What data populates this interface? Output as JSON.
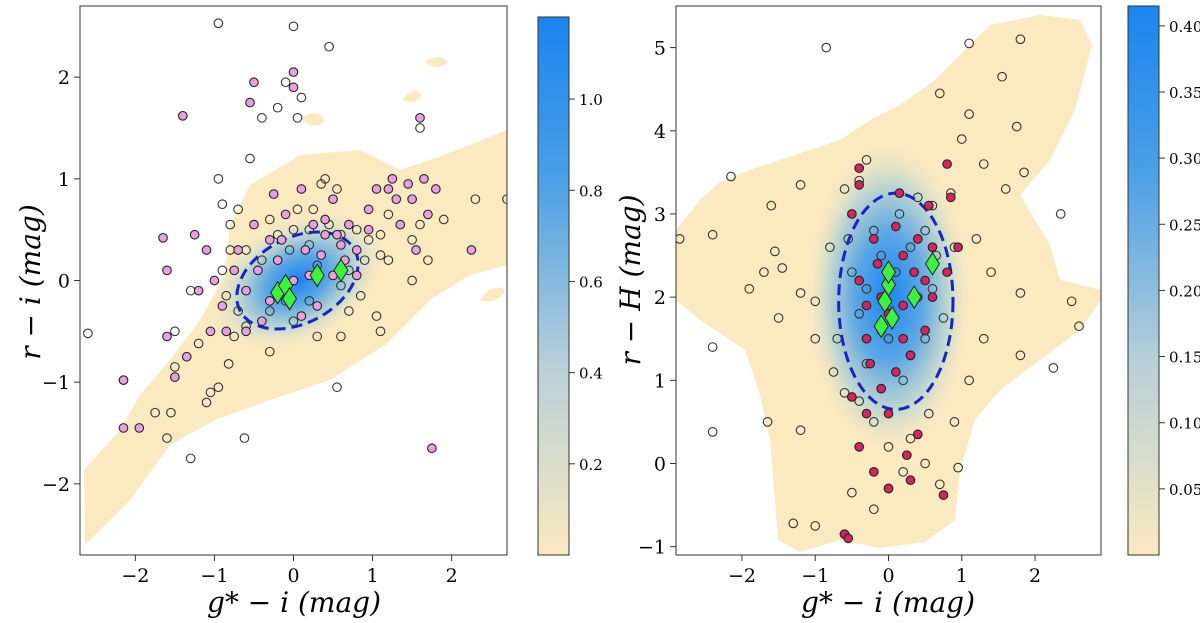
{
  "chart_data": [
    {
      "type": "scatter",
      "panel": "left",
      "xlabel": "g* − i (mag)",
      "ylabel": "r − i (mag)",
      "xlim": [
        -2.7,
        2.7
      ],
      "ylim": [
        -2.7,
        2.7
      ],
      "xticks": [
        -2,
        -1,
        0,
        1,
        2
      ],
      "yticks": [
        -2,
        -1,
        0,
        1,
        2
      ],
      "xtick_labels": [
        "−2",
        "−1",
        "0",
        "1",
        "2"
      ],
      "ytick_labels": [
        "−2",
        "−1",
        "0",
        "1",
        "2"
      ],
      "colorbar": {
        "min": 0.0,
        "max": 1.18,
        "ticks": [
          0.2,
          0.4,
          0.6,
          0.8,
          1.0
        ],
        "tick_labels": [
          "0.2",
          "0.4",
          "0.6",
          "0.8",
          "1.0"
        ],
        "low_color": "#fbe9c0",
        "high_color": "#1a85f0"
      },
      "ellipse": {
        "cx": 0.05,
        "cy": 0.0,
        "rx": 0.82,
        "ry": 0.42,
        "angle_deg": 28,
        "color": "#1a23c8"
      },
      "density_center": [
        0.05,
        0.0
      ],
      "open_points": [
        [
          -2.6,
          -0.52
        ],
        [
          -1.55,
          -1.3
        ],
        [
          -1.3,
          -1.75
        ],
        [
          -1.1,
          -1.2
        ],
        [
          -1.05,
          -1.1
        ],
        [
          -0.95,
          -1.05
        ],
        [
          -0.62,
          -1.55
        ],
        [
          -1.5,
          -0.85
        ],
        [
          -1.2,
          -0.62
        ],
        [
          -0.82,
          -0.82
        ],
        [
          -0.6,
          -0.45
        ],
        [
          -0.3,
          -0.7
        ],
        [
          -0.7,
          -0.3
        ],
        [
          -0.85,
          -0.15
        ],
        [
          -0.9,
          0.1
        ],
        [
          -0.8,
          0.3
        ],
        [
          -0.6,
          0.3
        ],
        [
          -0.7,
          0.7
        ],
        [
          -0.55,
          1.2
        ],
        [
          -0.95,
          1.0
        ],
        [
          -0.9,
          0.75
        ],
        [
          -0.3,
          0.6
        ],
        [
          -0.2,
          0.45
        ],
        [
          0.05,
          0.7
        ],
        [
          -0.05,
          0.3
        ],
        [
          0.2,
          0.35
        ],
        [
          0.25,
          0.7
        ],
        [
          0.45,
          0.55
        ],
        [
          0.6,
          0.45
        ],
        [
          0.35,
          0.95
        ],
        [
          0.55,
          0.9
        ],
        [
          0.8,
          0.5
        ],
        [
          0.95,
          0.4
        ],
        [
          1.1,
          0.45
        ],
        [
          1.2,
          0.2
        ],
        [
          1.5,
          0.4
        ],
        [
          1.7,
          0.2
        ],
        [
          1.6,
          0.55
        ],
        [
          1.2,
          0.65
        ],
        [
          0.4,
          1.0
        ],
        [
          -0.4,
          1.6
        ],
        [
          -0.2,
          1.7
        ],
        [
          0.1,
          1.8
        ],
        [
          0.0,
          2.5
        ],
        [
          -0.95,
          2.53
        ],
        [
          0.45,
          2.3
        ],
        [
          0.05,
          1.6
        ],
        [
          1.05,
          -0.35
        ],
        [
          1.1,
          -0.5
        ],
        [
          0.7,
          -0.3
        ],
        [
          0.6,
          -0.55
        ],
        [
          0.3,
          -0.55
        ],
        [
          0.6,
          -0.05
        ],
        [
          0.55,
          -1.05
        ],
        [
          0.0,
          -0.4
        ],
        [
          -1.3,
          -0.1
        ],
        [
          -1.5,
          -0.5
        ],
        [
          1.6,
          1.5
        ],
        [
          1.9,
          0.6
        ],
        [
          2.3,
          0.8
        ],
        [
          2.7,
          0.8
        ],
        [
          1.5,
          0.0
        ],
        [
          -0.3,
          -0.3
        ],
        [
          -0.1,
          -0.2
        ],
        [
          0.3,
          0.15
        ],
        [
          0.9,
          0.2
        ],
        [
          0.2,
          0.5
        ],
        [
          -0.4,
          0.2
        ],
        [
          0.0,
          0.5
        ],
        [
          0.2,
          -0.2
        ],
        [
          0.7,
          0.1
        ],
        [
          -0.75,
          -0.55
        ],
        [
          1.1,
          0.25
        ],
        [
          0.85,
          -0.15
        ],
        [
          -0.1,
          1.95
        ],
        [
          -1.75,
          -1.3
        ],
        [
          -1.6,
          -1.55
        ],
        [
          -0.8,
          0.55
        ]
      ],
      "highlight_points": [
        [
          -2.15,
          -1.45
        ],
        [
          -2.15,
          -0.98
        ],
        [
          -1.95,
          -1.45
        ],
        [
          -1.6,
          -0.55
        ],
        [
          -1.5,
          -0.95
        ],
        [
          -1.6,
          0.1
        ],
        [
          -1.35,
          -0.75
        ],
        [
          -1.2,
          -0.1
        ],
        [
          -1.1,
          0.3
        ],
        [
          -1.0,
          0.0
        ],
        [
          -1.05,
          -0.5
        ],
        [
          -1.4,
          1.62
        ],
        [
          -1.65,
          0.42
        ],
        [
          -1.25,
          0.45
        ],
        [
          -0.55,
          1.75
        ],
        [
          -0.5,
          1.95
        ],
        [
          0.0,
          1.9
        ],
        [
          0.0,
          2.05
        ],
        [
          -0.5,
          0.55
        ],
        [
          -0.25,
          0.85
        ],
        [
          -0.1,
          0.65
        ],
        [
          0.1,
          0.9
        ],
        [
          0.25,
          0.55
        ],
        [
          0.4,
          0.6
        ],
        [
          0.6,
          0.35
        ],
        [
          0.7,
          0.55
        ],
        [
          0.8,
          0.3
        ],
        [
          0.95,
          0.7
        ],
        [
          1.05,
          0.9
        ],
        [
          1.25,
          1.0
        ],
        [
          1.3,
          0.8
        ],
        [
          1.45,
          0.95
        ],
        [
          1.5,
          0.8
        ],
        [
          1.65,
          1.0
        ],
        [
          1.7,
          0.65
        ],
        [
          1.8,
          0.9
        ],
        [
          1.75,
          -1.65
        ],
        [
          2.25,
          0.3
        ],
        [
          1.6,
          1.6
        ],
        [
          1.2,
          0.9
        ],
        [
          0.5,
          0.8
        ],
        [
          -0.7,
          0.3
        ],
        [
          -0.85,
          -0.5
        ],
        [
          -0.6,
          -0.5
        ],
        [
          -0.4,
          -0.4
        ],
        [
          -0.3,
          -0.2
        ],
        [
          -0.6,
          -0.1
        ],
        [
          -0.45,
          0.1
        ],
        [
          -0.2,
          0.2
        ],
        [
          0.0,
          0.0
        ],
        [
          0.15,
          0.3
        ],
        [
          0.35,
          0.25
        ],
        [
          0.5,
          0.05
        ],
        [
          0.2,
          0.05
        ],
        [
          -0.1,
          -0.1
        ],
        [
          -0.3,
          0.4
        ],
        [
          0.1,
          -0.35
        ],
        [
          0.3,
          -0.25
        ],
        [
          0.55,
          0.45
        ],
        [
          0.8,
          0.05
        ],
        [
          0.95,
          0.5
        ],
        [
          -0.75,
          0.1
        ],
        [
          -0.9,
          -0.25
        ],
        [
          0.4,
          0.45
        ],
        [
          0.65,
          0.2
        ],
        [
          -0.15,
          0.4
        ],
        [
          1.35,
          0.55
        ],
        [
          1.55,
          0.3
        ]
      ],
      "highlight_color": "#e8a0e0",
      "diamonds": [
        [
          -0.2,
          -0.12
        ],
        [
          -0.1,
          -0.05
        ],
        [
          -0.05,
          -0.18
        ],
        [
          0.3,
          0.05
        ],
        [
          0.6,
          0.1
        ]
      ],
      "diamond_color": "#3ef13e"
    },
    {
      "type": "scatter",
      "panel": "right",
      "xlabel": "g* − i (mag)",
      "ylabel": "r − H (mag)",
      "xlim": [
        -2.9,
        2.9
      ],
      "ylim": [
        -1.1,
        5.5
      ],
      "xticks": [
        -2,
        -1,
        0,
        1,
        2
      ],
      "yticks": [
        -1,
        0,
        1,
        2,
        3,
        4,
        5
      ],
      "xtick_labels": [
        "−2",
        "−1",
        "0",
        "1",
        "2"
      ],
      "ytick_labels": [
        "−1",
        "0",
        "1",
        "2",
        "3",
        "4",
        "5"
      ],
      "colorbar": {
        "min": 0.0,
        "max": 0.415,
        "ticks": [
          0.05,
          0.1,
          0.15,
          0.2,
          0.25,
          0.3,
          0.35,
          0.4
        ],
        "tick_labels": [
          "0.05",
          "0.10",
          "0.15",
          "0.20",
          "0.25",
          "0.30",
          "0.35",
          "0.40"
        ],
        "low_color": "#fbe9c0",
        "high_color": "#1a85f0"
      },
      "ellipse": {
        "cx": 0.1,
        "cy": 1.95,
        "rx": 0.78,
        "ry": 1.3,
        "angle_deg": 0,
        "color": "#1a23c8"
      },
      "density_center": [
        0.0,
        2.0
      ],
      "open_points": [
        [
          -0.85,
          5.0
        ],
        [
          1.1,
          5.05
        ],
        [
          1.8,
          5.1
        ],
        [
          1.55,
          4.65
        ],
        [
          1.1,
          4.2
        ],
        [
          0.7,
          4.45
        ],
        [
          1.0,
          3.9
        ],
        [
          1.3,
          3.6
        ],
        [
          1.6,
          3.3
        ],
        [
          1.85,
          3.5
        ],
        [
          1.75,
          4.05
        ],
        [
          -1.2,
          3.35
        ],
        [
          -1.6,
          3.1
        ],
        [
          -2.15,
          3.45
        ],
        [
          -2.4,
          2.75
        ],
        [
          -2.85,
          2.7
        ],
        [
          -1.55,
          2.55
        ],
        [
          -1.7,
          2.3
        ],
        [
          -1.9,
          2.1
        ],
        [
          -1.45,
          2.35
        ],
        [
          -1.2,
          2.05
        ],
        [
          -1.0,
          1.95
        ],
        [
          -1.5,
          1.75
        ],
        [
          -1.0,
          1.5
        ],
        [
          -0.8,
          2.6
        ],
        [
          -0.6,
          3.3
        ],
        [
          -0.4,
          3.4
        ],
        [
          -0.3,
          3.65
        ],
        [
          0.4,
          3.2
        ],
        [
          0.6,
          3.1
        ],
        [
          0.85,
          3.25
        ],
        [
          0.9,
          2.6
        ],
        [
          1.4,
          2.3
        ],
        [
          1.8,
          2.05
        ],
        [
          2.35,
          3.0
        ],
        [
          2.5,
          1.95
        ],
        [
          2.6,
          1.65
        ],
        [
          2.25,
          1.15
        ],
        [
          1.8,
          1.3
        ],
        [
          1.3,
          1.5
        ],
        [
          1.1,
          1.0
        ],
        [
          0.9,
          0.5
        ],
        [
          0.55,
          0.6
        ],
        [
          0.3,
          0.3
        ],
        [
          0.0,
          0.2
        ],
        [
          -0.2,
          0.5
        ],
        [
          -0.4,
          0.75
        ],
        [
          -0.6,
          0.85
        ],
        [
          -1.2,
          0.4
        ],
        [
          -1.65,
          0.5
        ],
        [
          -1.3,
          -0.72
        ],
        [
          -1.0,
          -0.75
        ],
        [
          -0.6,
          -0.85
        ],
        [
          -0.5,
          -0.35
        ],
        [
          -0.2,
          -0.55
        ],
        [
          0.0,
          -0.3
        ],
        [
          0.2,
          -0.1
        ],
        [
          0.5,
          0.0
        ],
        [
          0.7,
          -0.25
        ],
        [
          0.95,
          -0.05
        ],
        [
          -2.4,
          0.38
        ],
        [
          -2.4,
          1.4
        ],
        [
          -0.3,
          1.2
        ],
        [
          -0.1,
          1.6
        ],
        [
          0.3,
          1.3
        ],
        [
          0.5,
          1.5
        ],
        [
          0.6,
          2.1
        ],
        [
          0.3,
          2.6
        ],
        [
          -0.2,
          2.8
        ],
        [
          -0.5,
          2.3
        ],
        [
          -0.4,
          1.8
        ],
        [
          0.1,
          2.3
        ],
        [
          0.5,
          2.8
        ],
        [
          -0.7,
          1.5
        ],
        [
          0.2,
          1.0
        ],
        [
          0.75,
          1.75
        ],
        [
          -0.55,
          2.7
        ],
        [
          0.15,
          3.0
        ],
        [
          -0.1,
          2.5
        ],
        [
          0.4,
          2.0
        ],
        [
          -0.3,
          2.1
        ],
        [
          0.65,
          2.5
        ],
        [
          0.0,
          1.5
        ],
        [
          1.2,
          2.7
        ],
        [
          -0.75,
          1.1
        ]
      ],
      "highlight_points": [
        [
          -0.4,
          3.55
        ],
        [
          -0.4,
          3.35
        ],
        [
          0.15,
          3.25
        ],
        [
          0.55,
          3.1
        ],
        [
          0.85,
          3.2
        ],
        [
          0.8,
          3.6
        ],
        [
          0.95,
          2.6
        ],
        [
          0.8,
          2.3
        ],
        [
          0.6,
          2.0
        ],
        [
          0.5,
          1.6
        ],
        [
          0.3,
          1.3
        ],
        [
          0.1,
          1.1
        ],
        [
          -0.1,
          0.9
        ],
        [
          -0.3,
          0.6
        ],
        [
          -0.5,
          0.8
        ],
        [
          -0.6,
          -0.85
        ],
        [
          -0.55,
          -0.9
        ],
        [
          -0.2,
          -0.1
        ],
        [
          0.0,
          -0.3
        ],
        [
          0.4,
          0.35
        ],
        [
          0.3,
          -0.2
        ],
        [
          0.75,
          -0.38
        ],
        [
          -0.3,
          1.5
        ],
        [
          -0.1,
          2.0
        ],
        [
          0.2,
          2.5
        ],
        [
          0.4,
          2.7
        ],
        [
          -0.2,
          2.7
        ],
        [
          -0.4,
          2.2
        ],
        [
          0.0,
          1.8
        ],
        [
          0.2,
          1.9
        ],
        [
          0.35,
          2.3
        ],
        [
          -0.25,
          1.2
        ],
        [
          0.6,
          2.6
        ],
        [
          -0.5,
          3.0
        ],
        [
          0.1,
          2.85
        ],
        [
          -0.15,
          2.4
        ],
        [
          0.5,
          2.2
        ],
        [
          -0.3,
          1.9
        ],
        [
          0.2,
          1.5
        ],
        [
          0.0,
          0.6
        ],
        [
          -0.4,
          0.2
        ],
        [
          0.25,
          0.1
        ]
      ],
      "highlight_color": "#d4265e",
      "diamonds": [
        [
          -0.1,
          1.65
        ],
        [
          -0.05,
          1.95
        ],
        [
          0.0,
          2.15
        ],
        [
          0.0,
          2.3
        ],
        [
          0.05,
          1.75
        ],
        [
          0.35,
          2.0
        ],
        [
          0.6,
          2.4
        ]
      ],
      "diamond_color": "#3ef13e"
    }
  ]
}
